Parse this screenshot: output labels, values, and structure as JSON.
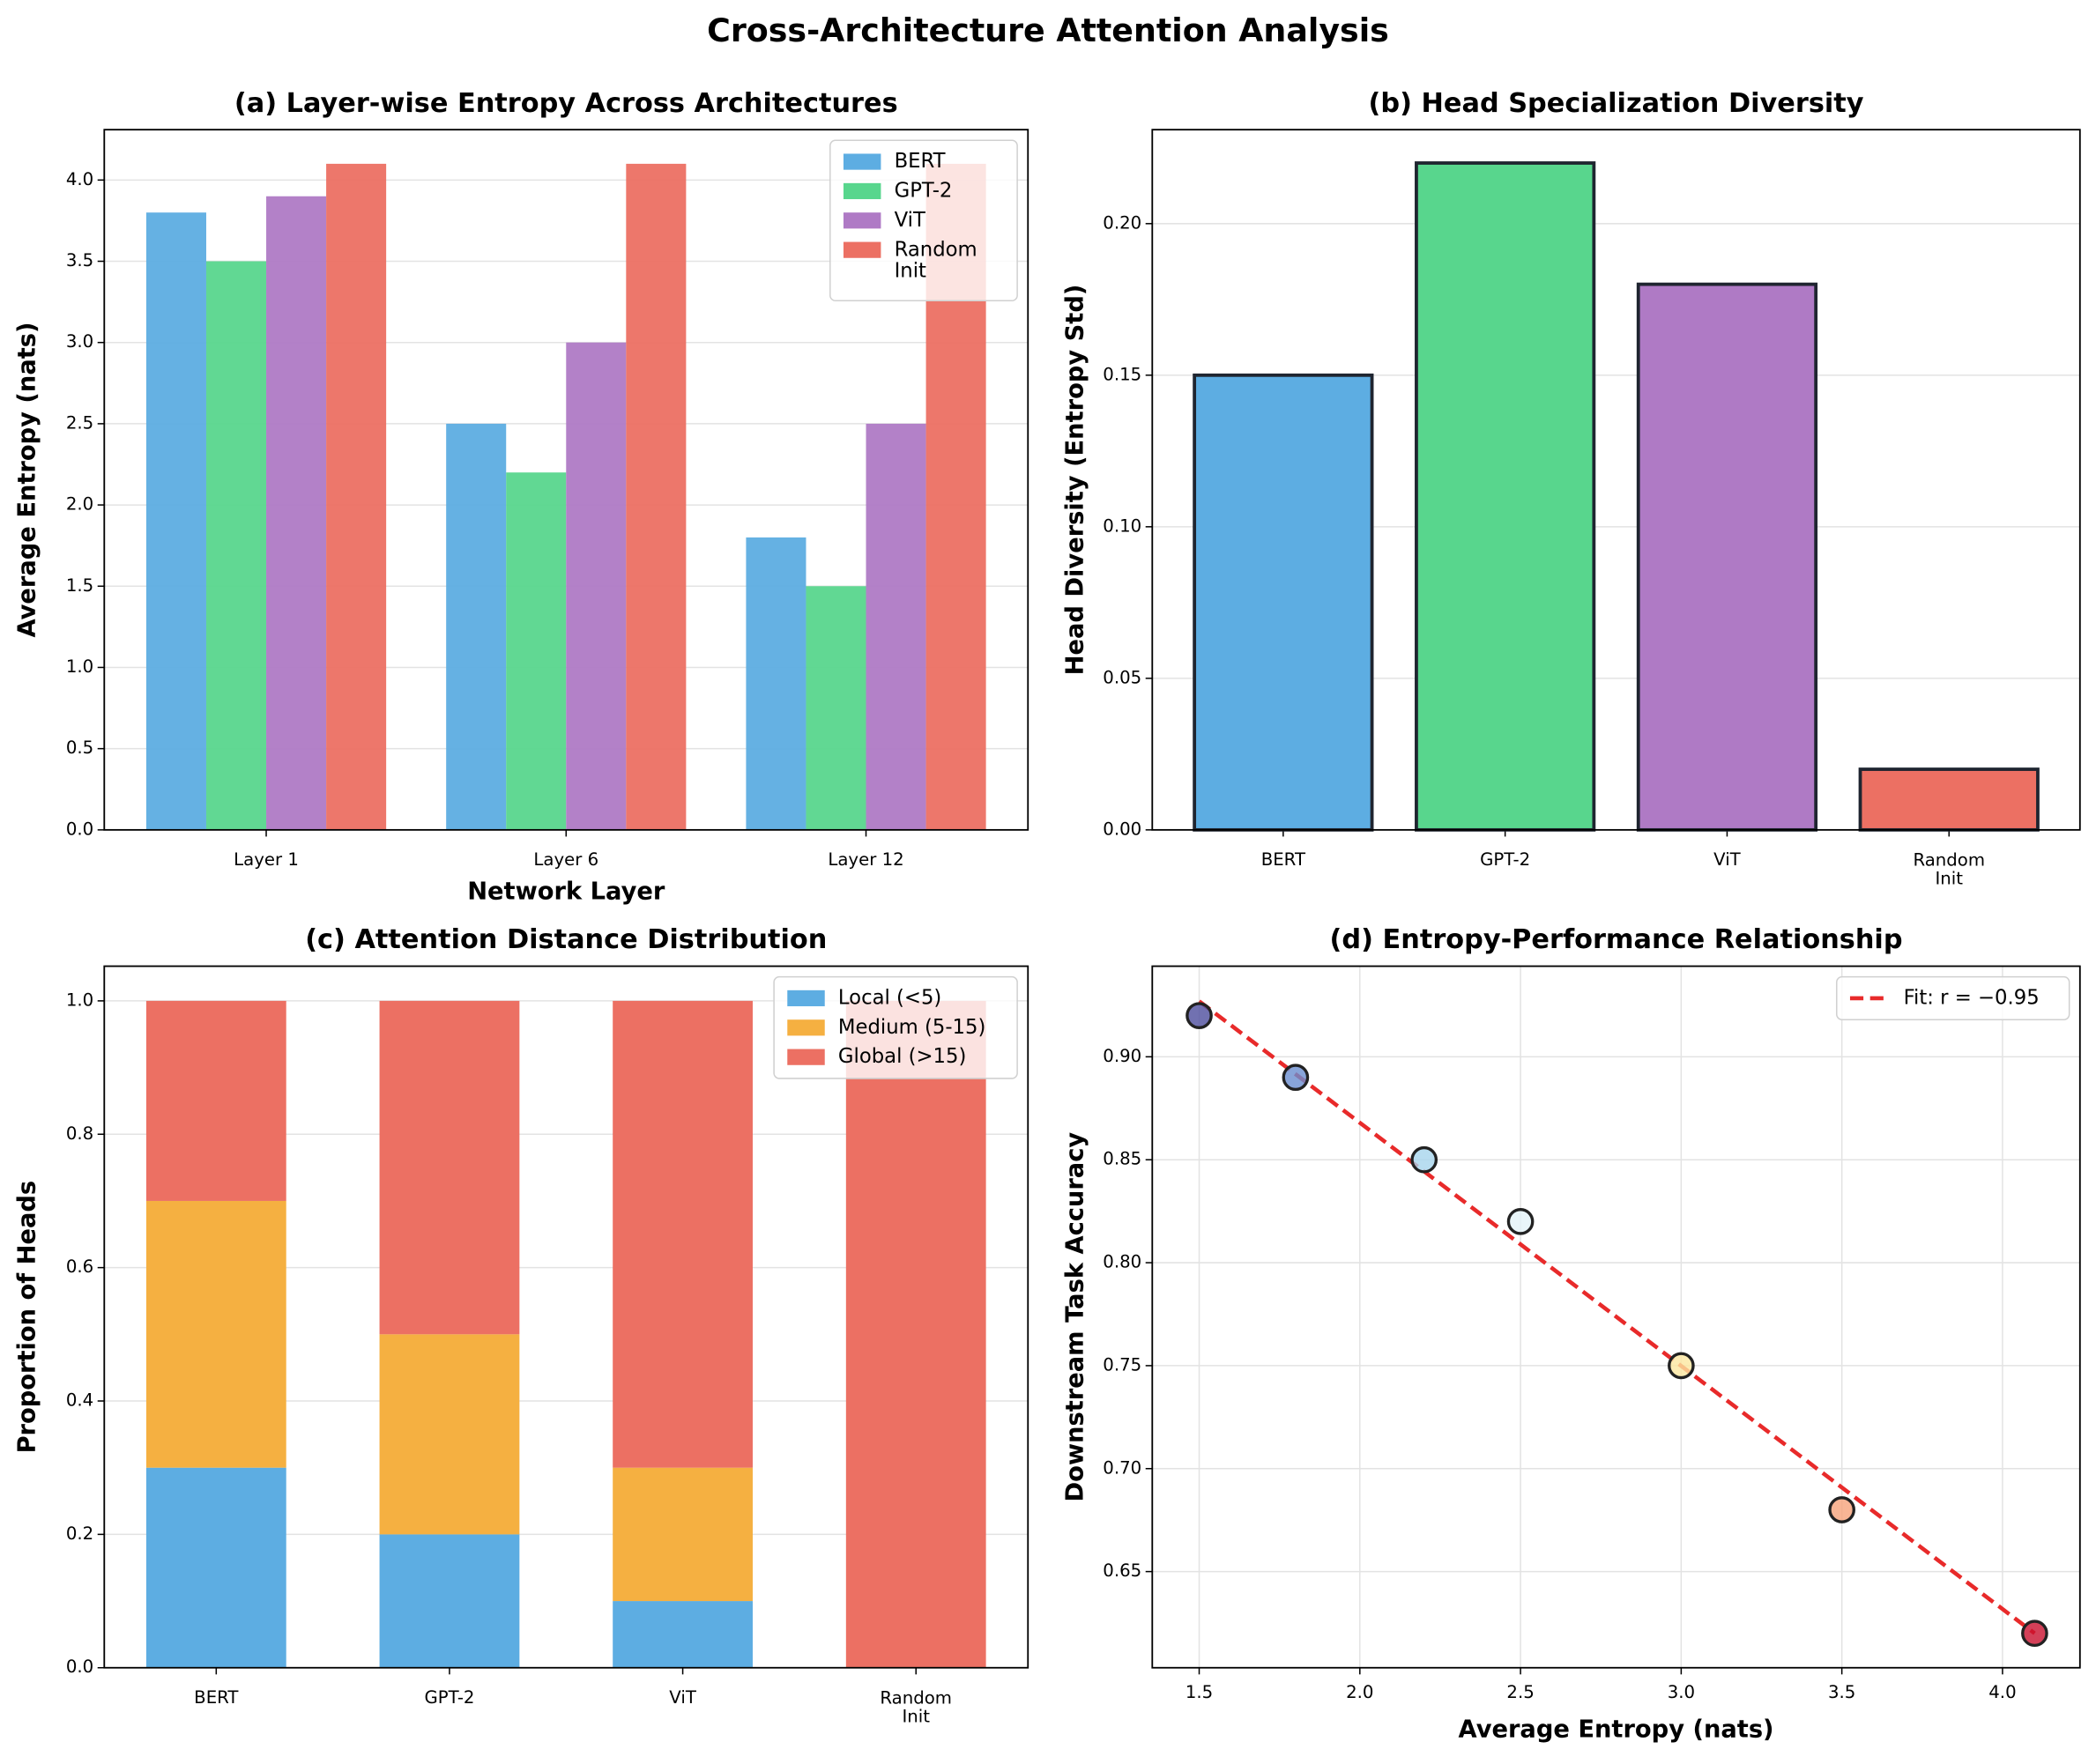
{
  "title": "Cross-Architecture Attention Analysis",
  "chart_data": [
    {
      "type": "bar",
      "title": "(a) Layer-wise Entropy Across Architectures",
      "xlabel": "Network Layer",
      "ylabel": "Average Entropy (nats)",
      "categories": [
        "Layer 1",
        "Layer 6",
        "Layer 12"
      ],
      "series": [
        {
          "name": "BERT",
          "color": "#5dade2",
          "values": [
            3.8,
            2.5,
            1.8
          ]
        },
        {
          "name": "GPT-2",
          "color": "#58d68d",
          "values": [
            3.5,
            2.2,
            1.5
          ]
        },
        {
          "name": "ViT",
          "color": "#af7ac5",
          "values": [
            3.9,
            3.0,
            2.5
          ]
        },
        {
          "name": "Random\nInit",
          "color": "#ec7063",
          "values": [
            4.1,
            4.1,
            4.1
          ]
        }
      ],
      "ylim": [
        0,
        4.31
      ],
      "yticks": [
        {
          "value": 0,
          "label": "0.0"
        },
        0.5,
        {
          "value": 1,
          "label": "1.0"
        },
        1.5,
        {
          "value": 2,
          "label": "2.0"
        },
        2.5,
        {
          "value": 3,
          "label": "3.0"
        },
        3.5,
        {
          "value": 4,
          "label": "4.0"
        }
      ],
      "grid": "y",
      "legend": "upper right"
    },
    {
      "type": "bar",
      "title": "(b) Head Specialization Diversity",
      "ylabel": "Head Diversity (Entropy Std)",
      "categories": [
        "BERT",
        "GPT-2",
        "ViT",
        "Random\nInit"
      ],
      "values": [
        0.15,
        0.22,
        0.18,
        0.02
      ],
      "colors": [
        "#5dade2",
        "#58d68d",
        "#af7ac5",
        "#ec7063"
      ],
      "edgecolor": "#1f2530",
      "ylim": [
        0,
        0.231
      ],
      "yticks": [
        {
          "value": 0,
          "label": "0.00"
        },
        0.05,
        {
          "value": 0.1,
          "label": "0.10"
        },
        0.15,
        {
          "value": 0.2,
          "label": "0.20"
        }
      ],
      "grid": "y"
    },
    {
      "type": "stacked_bar",
      "title": "(c) Attention Distance Distribution",
      "ylabel": "Proportion of Heads",
      "categories": [
        "BERT",
        "GPT-2",
        "ViT",
        "Random\nInit"
      ],
      "series": [
        {
          "name": "Local (<5)",
          "color": "#5dade2",
          "values": [
            0.3,
            0.2,
            0.1,
            0
          ]
        },
        {
          "name": "Medium (5-15)",
          "color": "#f5b041",
          "values": [
            0.4,
            0.3,
            0.2,
            0
          ]
        },
        {
          "name": "Global (>15)",
          "color": "#ec7063",
          "values": [
            0.3,
            0.5,
            0.7,
            1.0
          ]
        }
      ],
      "ylim": [
        0,
        1.052
      ],
      "yticks": [
        {
          "value": 0,
          "label": "0.0"
        },
        0.2,
        0.4,
        0.6,
        0.8,
        {
          "value": 1,
          "label": "1.0"
        }
      ],
      "grid": "y",
      "legend": "upper right"
    },
    {
      "type": "scatter",
      "title": "(d) Entropy-Performance Relationship",
      "xlabel": "Average Entropy (nats)",
      "ylabel": "Downstream Task Accuracy",
      "x": [
        1.5,
        1.8,
        2.2,
        2.5,
        3.0,
        3.5,
        4.1
      ],
      "y": [
        0.92,
        0.89,
        0.85,
        0.82,
        0.75,
        0.68,
        0.62
      ],
      "colors": [
        "#4e4e9e",
        "#6a8dd0",
        "#a6d4ec",
        "#e3f3f8",
        "#fde7a0",
        "#f6a27a",
        "#c8102e"
      ],
      "fit": {
        "name": "Fit: r = −0.95",
        "color": "#e82a2a",
        "x": [
          1.5,
          4.1
        ],
        "y": [
          0.927,
          0.62
        ]
      },
      "xlim": [
        1.354,
        4.241
      ],
      "ylim": [
        0.6033,
        0.944
      ],
      "xticks": [
        1.5,
        {
          "value": 2,
          "label": "2.0"
        },
        2.5,
        {
          "value": 3,
          "label": "3.0"
        },
        3.5,
        {
          "value": 4,
          "label": "4.0"
        }
      ],
      "yticks": [
        0.65,
        {
          "value": 0.7,
          "label": "0.70"
        },
        0.75,
        {
          "value": 0.8,
          "label": "0.80"
        },
        0.85,
        {
          "value": 0.9,
          "label": "0.90"
        }
      ],
      "grid": "both",
      "legend": "upper right"
    }
  ]
}
